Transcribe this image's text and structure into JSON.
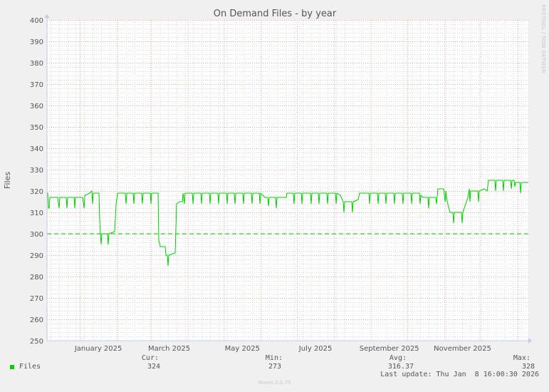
{
  "title": "On Demand Files - by year",
  "vendor_label": "RRDTOOL / TOBI OETIKER",
  "footer": "Munin 2.0.75",
  "legend": {
    "series_name": "Files",
    "color": "#00cc00",
    "cur_label": "Cur:",
    "cur_value": "324",
    "min_label": "Min:",
    "min_value": "273",
    "avg_label": "Avg:",
    "avg_value": "316.37",
    "max_label": "Max:",
    "max_value": "328",
    "last_update": "Last update: Thu Jan  8 16:00:30 2026"
  },
  "colors": {
    "background": "#f0f0f0",
    "plot_background": "#ffffff",
    "line": "#00cc00",
    "minor_grid": "#d8d8d8",
    "major_grid": "#e7a8a8",
    "axis": "#c8c8f0"
  },
  "chart_data": {
    "type": "line",
    "title": "On Demand Files - by year",
    "xlabel": "",
    "ylabel": "Files",
    "ylim": [
      250,
      400
    ],
    "y_ticks": [
      250,
      260,
      270,
      280,
      290,
      300,
      310,
      320,
      330,
      340,
      350,
      360,
      370,
      380,
      390,
      400
    ],
    "x_unit": "days since 2025-01-01",
    "xlim": [
      -27.3,
      373.9
    ],
    "x_tick_labels": [
      {
        "label": "January 2025",
        "day": 15.5
      },
      {
        "label": "March 2025",
        "day": 74.5
      },
      {
        "label": "May 2025",
        "day": 135.5
      },
      {
        "label": "July 2025",
        "day": 196.5
      },
      {
        "label": "September 2025",
        "day": 258
      },
      {
        "label": "November 2025",
        "day": 319
      }
    ],
    "month_starts": [
      0,
      31,
      59,
      90,
      120,
      151,
      181,
      212,
      243,
      273,
      304,
      334,
      365
    ],
    "week_start_day": -24.3,
    "grid": true,
    "threshold": {
      "value": 300,
      "style": "dashed"
    },
    "series": [
      {
        "name": "Files",
        "color": "#00cc00",
        "points": [
          [
            -27.3,
            319
          ],
          [
            -26.7,
            319
          ],
          [
            -26.1,
            312
          ],
          [
            -25.5,
            312
          ],
          [
            -24.9,
            317
          ],
          [
            -18.4,
            317
          ],
          [
            -17.2,
            312
          ],
          [
            -16.6,
            317
          ],
          [
            -11.3,
            317
          ],
          [
            -10.7,
            312
          ],
          [
            -10.1,
            317
          ],
          [
            -4.7,
            317
          ],
          [
            -4.2,
            312
          ],
          [
            -3.6,
            317
          ],
          [
            -0.6,
            317
          ],
          [
            2.4,
            317
          ],
          [
            3.6,
            312
          ],
          [
            4.2,
            318
          ],
          [
            8.3,
            319
          ],
          [
            10.1,
            320
          ],
          [
            10.7,
            314
          ],
          [
            11.3,
            319
          ],
          [
            16.0,
            319
          ],
          [
            16.6,
            306
          ],
          [
            17.2,
            300
          ],
          [
            17.8,
            295
          ],
          [
            18.4,
            300
          ],
          [
            23.1,
            300
          ],
          [
            23.7,
            295
          ],
          [
            24.3,
            300
          ],
          [
            29.1,
            301
          ],
          [
            30.3,
            314
          ],
          [
            31.5,
            319
          ],
          [
            38.0,
            319
          ],
          [
            38.6,
            314
          ],
          [
            39.2,
            319
          ],
          [
            44.5,
            319
          ],
          [
            45.1,
            314
          ],
          [
            45.7,
            319
          ],
          [
            51.6,
            319
          ],
          [
            52.2,
            314
          ],
          [
            52.8,
            319
          ],
          [
            58.8,
            319
          ],
          [
            59.4,
            314
          ],
          [
            59.9,
            319
          ],
          [
            65.3,
            319
          ],
          [
            65.9,
            297
          ],
          [
            67.1,
            294
          ],
          [
            71.2,
            294
          ],
          [
            71.8,
            290
          ],
          [
            73.0,
            290
          ],
          [
            73.6,
            285
          ],
          [
            74.2,
            290
          ],
          [
            79.5,
            291
          ],
          [
            80.7,
            314
          ],
          [
            83.1,
            315
          ],
          [
            85.5,
            315
          ],
          [
            86.1,
            319
          ],
          [
            87.2,
            314
          ],
          [
            87.8,
            319
          ],
          [
            93.8,
            319
          ],
          [
            94.4,
            314
          ],
          [
            95.0,
            319
          ],
          [
            100.9,
            319
          ],
          [
            101.5,
            314
          ],
          [
            102.1,
            319
          ],
          [
            108.0,
            319
          ],
          [
            108.6,
            314
          ],
          [
            109.2,
            319
          ],
          [
            115.1,
            319
          ],
          [
            115.7,
            314
          ],
          [
            116.3,
            319
          ],
          [
            122.3,
            319
          ],
          [
            122.9,
            314
          ],
          [
            123.5,
            319
          ],
          [
            128.8,
            319
          ],
          [
            129.4,
            314
          ],
          [
            130.0,
            319
          ],
          [
            135.9,
            319
          ],
          [
            136.5,
            314
          ],
          [
            137.1,
            319
          ],
          [
            143.0,
            319
          ],
          [
            143.6,
            314
          ],
          [
            144.2,
            319
          ],
          [
            149.6,
            319
          ],
          [
            150.2,
            314
          ],
          [
            150.8,
            319
          ],
          [
            154.3,
            317
          ],
          [
            156.7,
            317
          ],
          [
            157.3,
            313
          ],
          [
            157.9,
            317
          ],
          [
            163.2,
            317
          ],
          [
            163.8,
            312
          ],
          [
            164.4,
            317
          ],
          [
            172.1,
            317
          ],
          [
            172.7,
            319
          ],
          [
            178.0,
            319
          ],
          [
            178.6,
            314
          ],
          [
            179.2,
            319
          ],
          [
            184.6,
            319
          ],
          [
            185.2,
            314
          ],
          [
            185.8,
            319
          ],
          [
            192.3,
            319
          ],
          [
            192.9,
            314
          ],
          [
            193.5,
            319
          ],
          [
            198.8,
            319
          ],
          [
            199.4,
            314
          ],
          [
            200.0,
            319
          ],
          [
            205.9,
            319
          ],
          [
            206.5,
            314
          ],
          [
            207.1,
            319
          ],
          [
            213.1,
            319
          ],
          [
            213.7,
            314
          ],
          [
            214.3,
            319
          ],
          [
            217.2,
            318
          ],
          [
            219.6,
            315
          ],
          [
            220.2,
            310
          ],
          [
            220.8,
            315
          ],
          [
            226.7,
            315
          ],
          [
            227.3,
            310
          ],
          [
            227.9,
            315
          ],
          [
            232.1,
            316
          ],
          [
            233.2,
            319
          ],
          [
            241.0,
            319
          ],
          [
            241.6,
            314
          ],
          [
            242.2,
            319
          ],
          [
            248.1,
            319
          ],
          [
            248.7,
            314
          ],
          [
            249.3,
            319
          ],
          [
            254.6,
            319
          ],
          [
            255.2,
            314
          ],
          [
            255.8,
            319
          ],
          [
            261.7,
            319
          ],
          [
            262.3,
            314
          ],
          [
            262.9,
            319
          ],
          [
            268.8,
            319
          ],
          [
            269.4,
            314
          ],
          [
            270.0,
            319
          ],
          [
            276.0,
            319
          ],
          [
            276.6,
            314
          ],
          [
            277.2,
            319
          ],
          [
            283.1,
            319
          ],
          [
            283.7,
            314
          ],
          [
            284.3,
            318
          ],
          [
            286.1,
            317
          ],
          [
            290.2,
            317
          ],
          [
            290.8,
            312
          ],
          [
            291.4,
            317
          ],
          [
            296.7,
            317
          ],
          [
            297.3,
            314
          ],
          [
            298.5,
            321
          ],
          [
            303.3,
            321
          ],
          [
            304.5,
            315
          ],
          [
            305.1,
            320
          ],
          [
            306.3,
            315
          ],
          [
            308.6,
            310
          ],
          [
            311.0,
            310
          ],
          [
            311.6,
            305
          ],
          [
            312.2,
            310
          ],
          [
            318.1,
            310
          ],
          [
            318.7,
            305
          ],
          [
            319.3,
            310
          ],
          [
            320.5,
            312
          ],
          [
            323.5,
            317
          ],
          [
            324.6,
            321
          ],
          [
            325.2,
            315
          ],
          [
            325.8,
            320
          ],
          [
            331.8,
            320
          ],
          [
            332.4,
            315
          ],
          [
            333.0,
            320
          ],
          [
            337.1,
            321
          ],
          [
            339.5,
            320
          ],
          [
            340.7,
            325
          ],
          [
            346.0,
            325
          ],
          [
            346.6,
            320
          ],
          [
            347.2,
            325
          ],
          [
            352.5,
            325
          ],
          [
            353.1,
            320
          ],
          [
            353.7,
            325
          ],
          [
            359.1,
            325
          ],
          [
            359.7,
            321
          ],
          [
            360.3,
            325
          ],
          [
            362.0,
            325
          ],
          [
            362.6,
            322
          ],
          [
            363.2,
            324
          ],
          [
            366.8,
            324
          ],
          [
            367.4,
            319
          ],
          [
            368.0,
            324
          ],
          [
            372.7,
            324
          ],
          [
            373.9,
            324
          ]
        ]
      }
    ],
    "legend_position": "bottom"
  }
}
